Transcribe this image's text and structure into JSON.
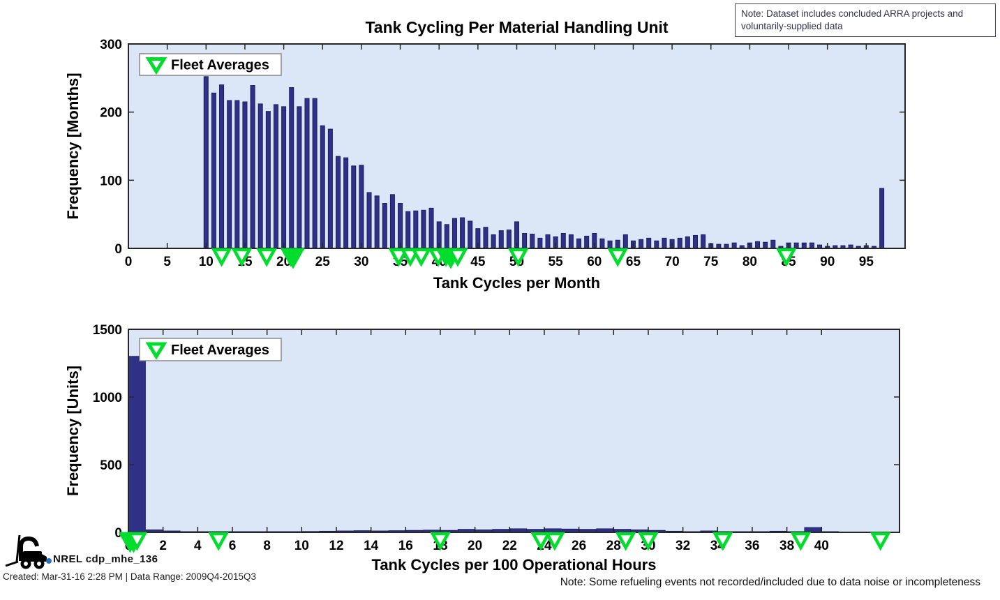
{
  "header_note": {
    "text": "Note: Dataset includes concluded ARRA projects and voluntarily-supplied data"
  },
  "footer": {
    "logo_label": "NREL cdp_mhe_136",
    "created_line": "Created: Mar-31-16 2:28 PM | Data Range: 2009Q4-2015Q3",
    "bottom_note": "Note:  Some refueling events not recorded/included due to data noise or incompleteness"
  },
  "colors": {
    "plot_bg": "#dbe6f7",
    "bar_fill": "#2f3187",
    "bar_edge": "#1b1d62",
    "axis": "#262626",
    "green_marker": "#00dd2c",
    "legend_border": "#888888"
  },
  "chart_data": [
    {
      "type": "bar",
      "title": "Tank Cycling Per Material Handling Unit",
      "xlabel": "Tank Cycles per Month",
      "ylabel": "Frequency [Months]",
      "xlim": [
        0,
        100
      ],
      "ylim": [
        0,
        300
      ],
      "xticks": [
        0,
        5,
        10,
        15,
        20,
        25,
        30,
        35,
        40,
        45,
        50,
        55,
        60,
        65,
        70,
        75,
        80,
        85,
        90,
        95
      ],
      "yticks": [
        0,
        100,
        200,
        300
      ],
      "bar_style": "thin",
      "legend": {
        "label": "Fleet Averages",
        "marker": "green-triangle-down"
      },
      "series": [
        {
          "name": "Frequency [Months]",
          "points": [
            [
              10,
              252
            ],
            [
              11,
              228
            ],
            [
              12,
              240
            ],
            [
              13,
              217
            ],
            [
              14,
              217
            ],
            [
              15,
              215
            ],
            [
              16,
              239
            ],
            [
              17,
              212
            ],
            [
              18,
              201
            ],
            [
              19,
              211
            ],
            [
              20,
              208
            ],
            [
              21,
              236
            ],
            [
              22,
              208
            ],
            [
              23,
              220
            ],
            [
              24,
              220
            ],
            [
              25,
              180
            ],
            [
              26,
              175
            ],
            [
              27,
              135
            ],
            [
              28,
              133
            ],
            [
              29,
              121
            ],
            [
              30,
              122
            ],
            [
              31,
              82
            ],
            [
              32,
              77
            ],
            [
              33,
              66
            ],
            [
              34,
              79
            ],
            [
              35,
              66
            ],
            [
              36,
              54
            ],
            [
              37,
              55
            ],
            [
              38,
              56
            ],
            [
              39,
              59
            ],
            [
              40,
              39
            ],
            [
              41,
              35
            ],
            [
              42,
              44
            ],
            [
              43,
              45
            ],
            [
              44,
              40
            ],
            [
              45,
              29
            ],
            [
              46,
              31
            ],
            [
              47,
              20
            ],
            [
              48,
              26
            ],
            [
              49,
              27
            ],
            [
              50,
              39
            ],
            [
              51,
              22
            ],
            [
              52,
              21
            ],
            [
              53,
              15
            ],
            [
              54,
              20
            ],
            [
              55,
              17
            ],
            [
              56,
              22
            ],
            [
              57,
              20
            ],
            [
              58,
              14
            ],
            [
              59,
              18
            ],
            [
              60,
              22
            ],
            [
              61,
              14
            ],
            [
              62,
              11
            ],
            [
              63,
              12
            ],
            [
              64,
              20
            ],
            [
              65,
              11
            ],
            [
              66,
              13
            ],
            [
              67,
              15
            ],
            [
              68,
              11
            ],
            [
              69,
              15
            ],
            [
              70,
              13
            ],
            [
              71,
              15
            ],
            [
              72,
              17
            ],
            [
              73,
              19
            ],
            [
              74,
              20
            ],
            [
              75,
              7
            ],
            [
              76,
              6
            ],
            [
              77,
              6
            ],
            [
              78,
              8
            ],
            [
              79,
              4
            ],
            [
              80,
              8
            ],
            [
              81,
              10
            ],
            [
              82,
              9
            ],
            [
              83,
              12
            ],
            [
              84,
              3
            ],
            [
              85,
              8
            ],
            [
              86,
              8
            ],
            [
              87,
              8
            ],
            [
              88,
              8
            ],
            [
              89,
              5
            ],
            [
              90,
              3
            ],
            [
              91,
              4
            ],
            [
              92,
              4
            ],
            [
              93,
              5
            ],
            [
              94,
              3
            ],
            [
              95,
              4
            ],
            [
              96,
              3
            ],
            [
              97,
              88
            ]
          ]
        }
      ],
      "fleet_averages": [
        {
          "x": 12.0
        },
        {
          "x": 14.6
        },
        {
          "x": 17.8
        },
        {
          "x": 20.9
        },
        {
          "x": 21.2,
          "filled": true
        },
        {
          "x": 34.8
        },
        {
          "x": 36.3
        },
        {
          "x": 37.7
        },
        {
          "x": 39.9
        },
        {
          "x": 40.9
        },
        {
          "x": 41.5,
          "filled": true
        },
        {
          "x": 42.4
        },
        {
          "x": 50.2
        },
        {
          "x": 63.0
        },
        {
          "x": 84.7
        }
      ]
    },
    {
      "type": "bar",
      "title": "",
      "xlabel": "Tank Cycles per 100 Operational Hours",
      "ylabel": "Frequency [Units]",
      "xlim": [
        0,
        44.5
      ],
      "ylim": [
        0,
        1500
      ],
      "xticks": [
        0,
        2,
        4,
        6,
        8,
        10,
        12,
        14,
        16,
        18,
        20,
        22,
        24,
        26,
        28,
        30,
        32,
        34,
        36,
        38,
        40
      ],
      "yticks": [
        0,
        500,
        1000,
        1500
      ],
      "bar_style": "histogram",
      "legend": {
        "label": "Fleet Averages",
        "marker": "green-triangle-down"
      },
      "series": [
        {
          "name": "Frequency [Units]",
          "points": [
            [
              0,
              1300
            ],
            [
              1,
              18
            ],
            [
              2,
              10
            ],
            [
              3,
              4
            ],
            [
              4,
              3
            ],
            [
              5,
              5
            ],
            [
              6,
              3
            ],
            [
              7,
              3
            ],
            [
              8,
              4
            ],
            [
              9,
              3
            ],
            [
              10,
              6
            ],
            [
              11,
              8
            ],
            [
              12,
              10
            ],
            [
              13,
              12
            ],
            [
              14,
              10
            ],
            [
              15,
              12
            ],
            [
              16,
              14
            ],
            [
              17,
              16
            ],
            [
              18,
              14
            ],
            [
              19,
              22
            ],
            [
              20,
              18
            ],
            [
              21,
              22
            ],
            [
              22,
              26
            ],
            [
              23,
              22
            ],
            [
              24,
              26
            ],
            [
              25,
              24
            ],
            [
              26,
              22
            ],
            [
              27,
              26
            ],
            [
              28,
              22
            ],
            [
              29,
              18
            ],
            [
              30,
              14
            ],
            [
              31,
              8
            ],
            [
              32,
              4
            ],
            [
              33,
              10
            ],
            [
              34,
              5
            ],
            [
              35,
              2
            ],
            [
              36,
              2
            ],
            [
              37,
              8
            ],
            [
              38,
              2
            ],
            [
              39,
              35
            ],
            [
              40,
              3
            ]
          ]
        }
      ],
      "fleet_averages": [
        {
          "x": 0.1,
          "filled": true
        },
        {
          "x": 0.3,
          "filled": true
        },
        {
          "x": 0.5
        },
        {
          "x": 5.2
        },
        {
          "x": 18.0
        },
        {
          "x": 23.8
        },
        {
          "x": 24.6
        },
        {
          "x": 28.7
        },
        {
          "x": 30.0
        },
        {
          "x": 34.3
        },
        {
          "x": 38.8
        },
        {
          "x": 43.4
        }
      ]
    }
  ]
}
